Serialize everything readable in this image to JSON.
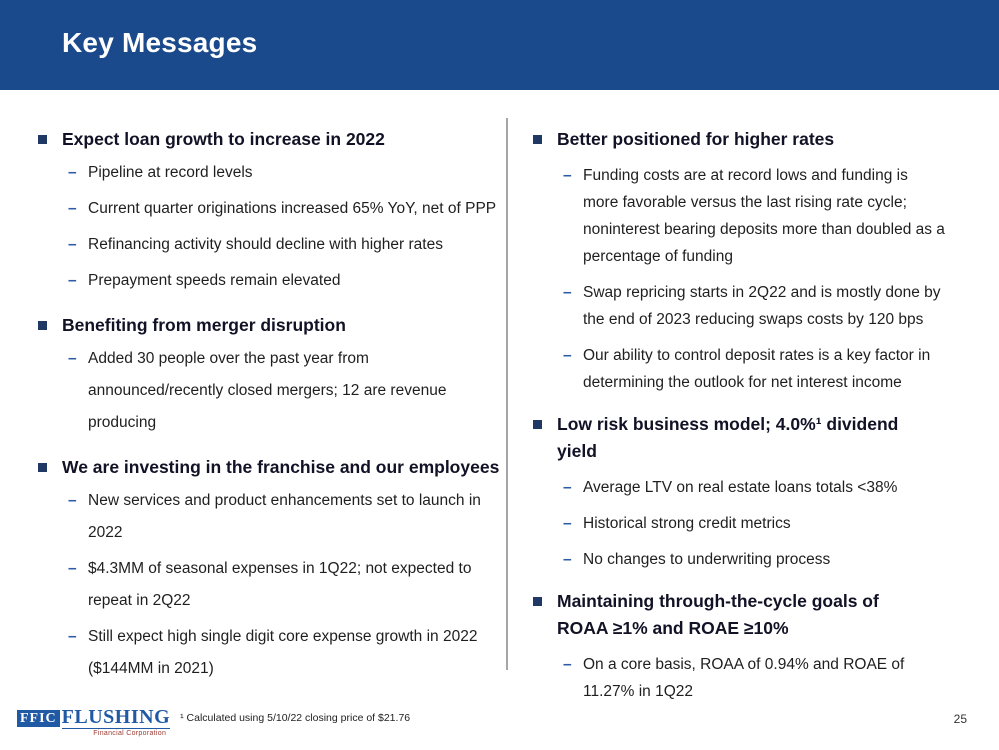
{
  "slide": {
    "title": "Key Messages",
    "page_number": "25",
    "footnote": "¹ Calculated using 5/10/22 closing price of $21.76",
    "logo": {
      "box_text": "FFIC",
      "name": "FLUSHING",
      "subtitle": "Financial Corporation"
    },
    "glyphs": {
      "dash_bullet": "–"
    },
    "colors": {
      "header_bg": "#1B4A8C",
      "title_text": "#FFFFFF",
      "bullet_square": "#1F3864",
      "dash_bullet": "#2E5DA6",
      "heading_text": "#121226",
      "body_text": "#1F1F1F",
      "divider": "#A6A6A6",
      "logo_blue": "#2059A4",
      "logo_subtitle": "#9C3A30"
    },
    "columns": [
      {
        "sections": [
          {
            "heading": "Expect loan growth to increase in 2022",
            "items": [
              "Pipeline at record levels",
              "Current quarter originations increased 65% YoY, net of PPP",
              "Refinancing activity should decline with higher rates",
              "Prepayment speeds remain elevated"
            ]
          },
          {
            "heading": "Benefiting from merger disruption",
            "items": [
              "Added 30 people over the past year from announced/recently closed mergers; 12 are revenue producing"
            ]
          },
          {
            "heading": "We are investing in the franchise and our employees",
            "items": [
              "New services and product enhancements set to launch in 2022",
              "$4.3MM of seasonal expenses in 1Q22; not expected to repeat in 2Q22",
              "Still expect high single digit core expense growth in 2022 ($144MM in 2021)"
            ]
          }
        ]
      },
      {
        "sections": [
          {
            "heading": "Better positioned for higher rates",
            "items": [
              "Funding costs are at record lows and funding is more favorable versus the last rising rate cycle; noninterest bearing deposits more than doubled as a percentage of funding",
              "Swap repricing starts in 2Q22 and is mostly done by the end of 2023 reducing swaps costs by 120 bps",
              "Our ability to control deposit rates is a key factor in determining the outlook for net interest income"
            ]
          },
          {
            "heading": "Low risk business model; 4.0%¹ dividend yield",
            "items": [
              "Average LTV on real estate loans totals <38%",
              "Historical strong credit metrics",
              "No changes to underwriting process"
            ]
          },
          {
            "heading": "Maintaining through-the-cycle goals of ROAA ≥1% and ROAE ≥10%",
            "items": [
              "On a core basis, ROAA of 0.94% and ROAE of 11.27% in 1Q22"
            ]
          }
        ]
      }
    ]
  }
}
